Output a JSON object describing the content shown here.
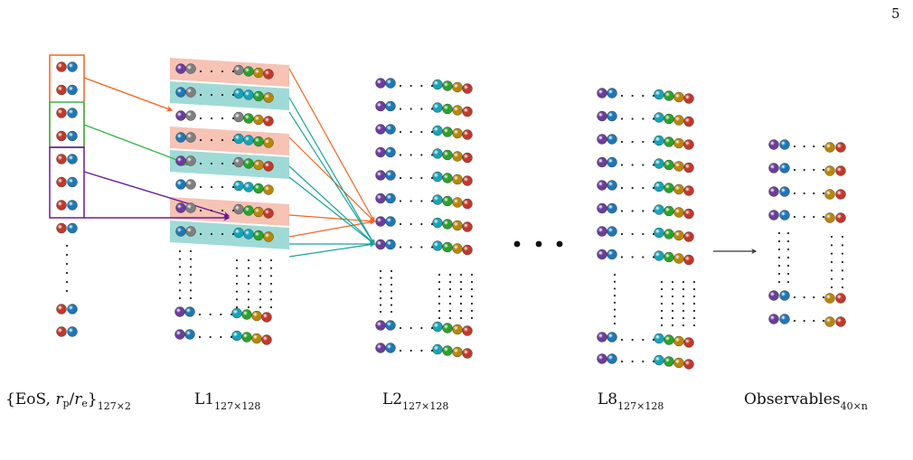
{
  "page_number": "5",
  "labels": {
    "input": {
      "prefix": "{EoS, ",
      "rp": "r",
      "rp_sub": "p",
      "slash": "/",
      "re": "r",
      "re_sub": "e",
      "suffix": "}",
      "dims": "127×2"
    },
    "l1": {
      "name": "L1",
      "dims": "127×128"
    },
    "l2": {
      "name": "L2",
      "dims": "127×128"
    },
    "l8": {
      "name": "L8",
      "dims": "127×128"
    },
    "out": {
      "name": "Observables",
      "dims": "40×n"
    }
  },
  "colors": {
    "red": "#c0392b",
    "blue": "#1f77b4",
    "purple": "#6a3d9a",
    "teal": "#17a2b8",
    "green": "#2ca02c",
    "olive": "#b8860b",
    "gray": "#7f7f7f",
    "orange_arrow": "#f26522",
    "green_arrow": "#3cb44b",
    "purple_arrow": "#6a1b9a",
    "teal_arrow": "#1aa39a",
    "salmon_band": "#f4b8a8",
    "teal_band": "#8fd3cf"
  }
}
